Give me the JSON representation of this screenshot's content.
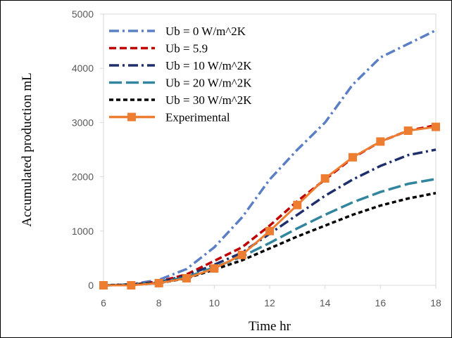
{
  "chart_data": {
    "type": "line",
    "x_label": "Time  hr",
    "y_label": "Accumulated production  mL",
    "x": [
      6,
      7,
      8,
      9,
      10,
      11,
      12,
      13,
      14,
      15,
      16,
      17,
      18
    ],
    "xlim": [
      6,
      18
    ],
    "xticks": [
      6,
      8,
      10,
      12,
      14,
      16,
      18
    ],
    "ylim": [
      0,
      5000
    ],
    "yticks": [
      0,
      1000,
      2000,
      3000,
      4000,
      5000
    ],
    "legend": "upper-left",
    "series": [
      {
        "name": "Ub = 0 W/m^2K",
        "color": "#5b7fc4",
        "style": "dashdot",
        "values": [
          0,
          20,
          100,
          300,
          700,
          1250,
          1950,
          2500,
          3000,
          3700,
          4200,
          4450,
          4700
        ]
      },
      {
        "name": "Ub = 5.9",
        "color": "#c00000",
        "style": "dash",
        "values": [
          0,
          10,
          70,
          200,
          450,
          700,
          1100,
          1550,
          1950,
          2350,
          2650,
          2850,
          2950
        ]
      },
      {
        "name": "Ub = 10 W/m^2K",
        "color": "#1f2f6b",
        "style": "dashdot",
        "values": [
          0,
          10,
          60,
          180,
          380,
          600,
          950,
          1300,
          1650,
          1950,
          2200,
          2400,
          2500
        ]
      },
      {
        "name": "Ub = 20 W/m^2K",
        "color": "#31859c",
        "style": "longdash",
        "values": [
          0,
          10,
          50,
          150,
          330,
          530,
          780,
          1050,
          1300,
          1530,
          1720,
          1870,
          1960
        ]
      },
      {
        "name": "Ub = 30 W/m^2K",
        "color": "#000000",
        "style": "shortdash",
        "values": [
          0,
          10,
          40,
          130,
          290,
          460,
          680,
          900,
          1100,
          1300,
          1470,
          1600,
          1700
        ]
      },
      {
        "name": "Experimental",
        "color": "#ed7d31",
        "style": "solid",
        "marker": "square",
        "values": [
          0,
          0,
          40,
          130,
          310,
          560,
          1000,
          1480,
          1970,
          2360,
          2650,
          2850,
          2920
        ]
      }
    ]
  }
}
